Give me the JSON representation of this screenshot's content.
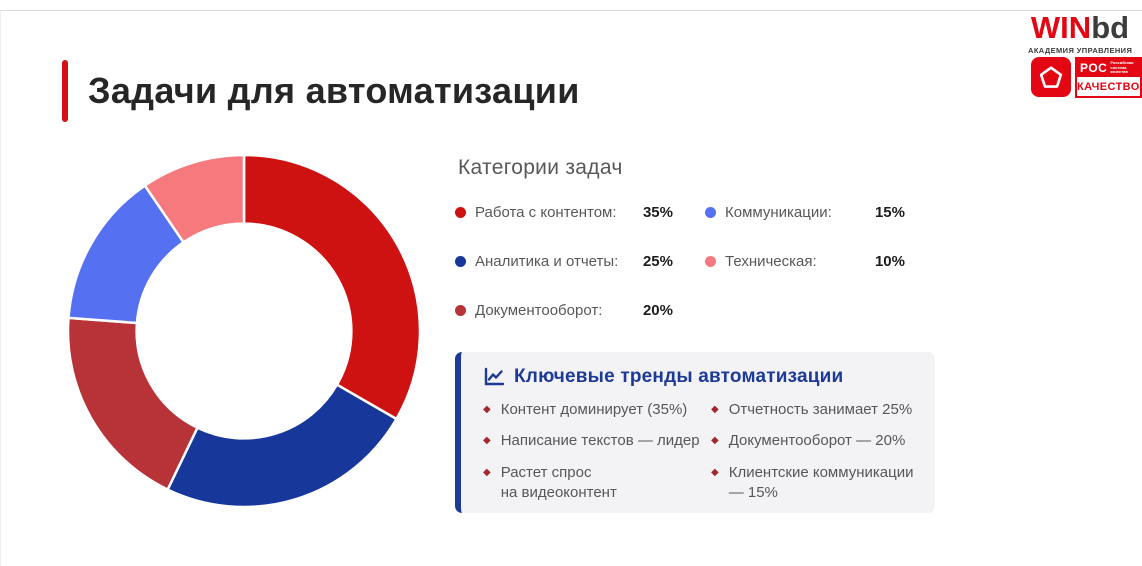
{
  "slide": {
    "title": "Задачи для автоматизации"
  },
  "logos": {
    "winbd": {
      "part_red": "WIN",
      "part_dark": "bd",
      "subtitle": "АКАДЕМИЯ УПРАВЛЕНИЯ"
    },
    "roskachestvo": {
      "top": "РОС",
      "bottom": "КАЧЕСТВО",
      "side_text": "Российская\nсистема\nкачества"
    }
  },
  "chart_data": {
    "type": "pie",
    "variant": "donut",
    "title": "Категории задач",
    "categories": [
      "Работа с контентом",
      "Аналитика и отчеты",
      "Документооборот",
      "Коммуникации",
      "Техническая"
    ],
    "values": [
      35,
      25,
      20,
      15,
      10
    ],
    "colors": [
      "#ce1111",
      "#17379b",
      "#b73338",
      "#5571f2",
      "#f5797d"
    ],
    "start_angle_deg": 0,
    "direction": "clockwise",
    "inner_radius_ratio": 0.61,
    "gap_color": "#ffffff",
    "legend_position": "right"
  },
  "legend": {
    "heading": "Категории задач",
    "items": [
      {
        "label": "Работа с контентом:",
        "value": "35%",
        "color": "#ce1111"
      },
      {
        "label": "Аналитика и отчеты:",
        "value": "25%",
        "color": "#17379b"
      },
      {
        "label": "Документооборот:",
        "value": "20%",
        "color": "#b73338"
      },
      {
        "label": "Коммуникации:",
        "value": "15%",
        "color": "#5571f2"
      },
      {
        "label": "Техническая:",
        "value": "10%",
        "color": "#f5797d"
      }
    ]
  },
  "trends": {
    "title": "Ключевые тренды автоматизации",
    "accent_color": "#1c3a96",
    "bullet": "◆",
    "items": [
      "Контент доминирует (35%)",
      "Отчетность занимает 25%",
      "Написание текстов — лидер",
      "Документооборот — 20%",
      "Растет спрос\nна видеоконтент",
      "Клиентские коммуникации\n— 15%"
    ]
  }
}
